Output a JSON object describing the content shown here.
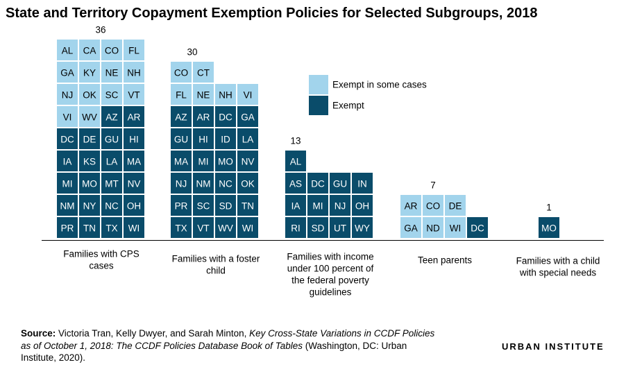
{
  "title": "State and Territory Copayment Exemption Policies for Selected Subgroups, 2018",
  "colors": {
    "exempt_some": "#a2d4ec",
    "exempt": "#0a4c6a",
    "text_light": "#000000",
    "text_dark": "#ffffff",
    "axis": "#000000"
  },
  "chart_data": {
    "type": "waffle",
    "title": "State and Territory Copayment Exemption Policies for Selected Subgroups, 2018",
    "legend": [
      {
        "key": "some",
        "label": "Exempt in some cases"
      },
      {
        "key": "full",
        "label": "Exempt"
      }
    ],
    "legend_position": "top-right",
    "categories": [
      {
        "label": "Families with CPS cases",
        "total": 36,
        "tiles": [
          {
            "code": "AL",
            "status": "some"
          },
          {
            "code": "CA",
            "status": "some"
          },
          {
            "code": "CO",
            "status": "some"
          },
          {
            "code": "FL",
            "status": "some"
          },
          {
            "code": "GA",
            "status": "some"
          },
          {
            "code": "KY",
            "status": "some"
          },
          {
            "code": "NE",
            "status": "some"
          },
          {
            "code": "NH",
            "status": "some"
          },
          {
            "code": "NJ",
            "status": "some"
          },
          {
            "code": "OK",
            "status": "some"
          },
          {
            "code": "SC",
            "status": "some"
          },
          {
            "code": "VT",
            "status": "some"
          },
          {
            "code": "VI",
            "status": "some"
          },
          {
            "code": "WV",
            "status": "some"
          },
          {
            "code": "AZ",
            "status": "full"
          },
          {
            "code": "AR",
            "status": "full"
          },
          {
            "code": "DC",
            "status": "full"
          },
          {
            "code": "DE",
            "status": "full"
          },
          {
            "code": "GU",
            "status": "full"
          },
          {
            "code": "HI",
            "status": "full"
          },
          {
            "code": "IA",
            "status": "full"
          },
          {
            "code": "KS",
            "status": "full"
          },
          {
            "code": "LA",
            "status": "full"
          },
          {
            "code": "MA",
            "status": "full"
          },
          {
            "code": "MI",
            "status": "full"
          },
          {
            "code": "MO",
            "status": "full"
          },
          {
            "code": "MT",
            "status": "full"
          },
          {
            "code": "NV",
            "status": "full"
          },
          {
            "code": "NM",
            "status": "full"
          },
          {
            "code": "NY",
            "status": "full"
          },
          {
            "code": "NC",
            "status": "full"
          },
          {
            "code": "OH",
            "status": "full"
          },
          {
            "code": "PR",
            "status": "full"
          },
          {
            "code": "TN",
            "status": "full"
          },
          {
            "code": "TX",
            "status": "full"
          },
          {
            "code": "WI",
            "status": "full"
          }
        ]
      },
      {
        "label": "Families with a foster child",
        "total": 30,
        "tiles": [
          {
            "code": "CO",
            "status": "some"
          },
          {
            "code": "CT",
            "status": "some"
          },
          {
            "code": "FL",
            "status": "some"
          },
          {
            "code": "NE",
            "status": "some"
          },
          {
            "code": "NH",
            "status": "some"
          },
          {
            "code": "VI",
            "status": "some"
          },
          {
            "code": "AZ",
            "status": "full"
          },
          {
            "code": "AR",
            "status": "full"
          },
          {
            "code": "DC",
            "status": "full"
          },
          {
            "code": "GA",
            "status": "full"
          },
          {
            "code": "GU",
            "status": "full"
          },
          {
            "code": "HI",
            "status": "full"
          },
          {
            "code": "ID",
            "status": "full"
          },
          {
            "code": "LA",
            "status": "full"
          },
          {
            "code": "MA",
            "status": "full"
          },
          {
            "code": "MI",
            "status": "full"
          },
          {
            "code": "MO",
            "status": "full"
          },
          {
            "code": "NV",
            "status": "full"
          },
          {
            "code": "NJ",
            "status": "full"
          },
          {
            "code": "NM",
            "status": "full"
          },
          {
            "code": "NC",
            "status": "full"
          },
          {
            "code": "OK",
            "status": "full"
          },
          {
            "code": "PR",
            "status": "full"
          },
          {
            "code": "SC",
            "status": "full"
          },
          {
            "code": "SD",
            "status": "full"
          },
          {
            "code": "TN",
            "status": "full"
          },
          {
            "code": "TX",
            "status": "full"
          },
          {
            "code": "VT",
            "status": "full"
          },
          {
            "code": "WV",
            "status": "full"
          },
          {
            "code": "WI",
            "status": "full"
          }
        ]
      },
      {
        "label": "Families with income under 100 percent of the federal poverty guidelines",
        "total": 13,
        "tiles": [
          {
            "code": "AL",
            "status": "full"
          },
          {
            "code": "AS",
            "status": "full"
          },
          {
            "code": "DC",
            "status": "full"
          },
          {
            "code": "GU",
            "status": "full"
          },
          {
            "code": "IN",
            "status": "full"
          },
          {
            "code": "IA",
            "status": "full"
          },
          {
            "code": "MI",
            "status": "full"
          },
          {
            "code": "NJ",
            "status": "full"
          },
          {
            "code": "OH",
            "status": "full"
          },
          {
            "code": "RI",
            "status": "full"
          },
          {
            "code": "SD",
            "status": "full"
          },
          {
            "code": "UT",
            "status": "full"
          },
          {
            "code": "WY",
            "status": "full"
          }
        ]
      },
      {
        "label": "Teen parents",
        "total": 7,
        "tiles": [
          {
            "code": "AR",
            "status": "some"
          },
          {
            "code": "CO",
            "status": "some"
          },
          {
            "code": "DE",
            "status": "some"
          },
          {
            "code": "GA",
            "status": "some"
          },
          {
            "code": "ND",
            "status": "some"
          },
          {
            "code": "WI",
            "status": "some"
          },
          {
            "code": "DC",
            "status": "full"
          }
        ]
      },
      {
        "label": "Families with a child with special needs",
        "total": 1,
        "tiles": [
          {
            "code": "MO",
            "status": "full"
          }
        ]
      }
    ]
  },
  "source": {
    "label": "Source:",
    "text_before": " Victoria Tran, Kelly Dwyer, and Sarah Minton, ",
    "italic": "Key Cross-State Variations in CCDF Policies as of October 1, 2018: The CCDF Policies Database Book of Tables",
    "text_after": " (Washington, DC: Urban Institute, 2020)."
  },
  "brand": "URBAN INSTITUTE"
}
